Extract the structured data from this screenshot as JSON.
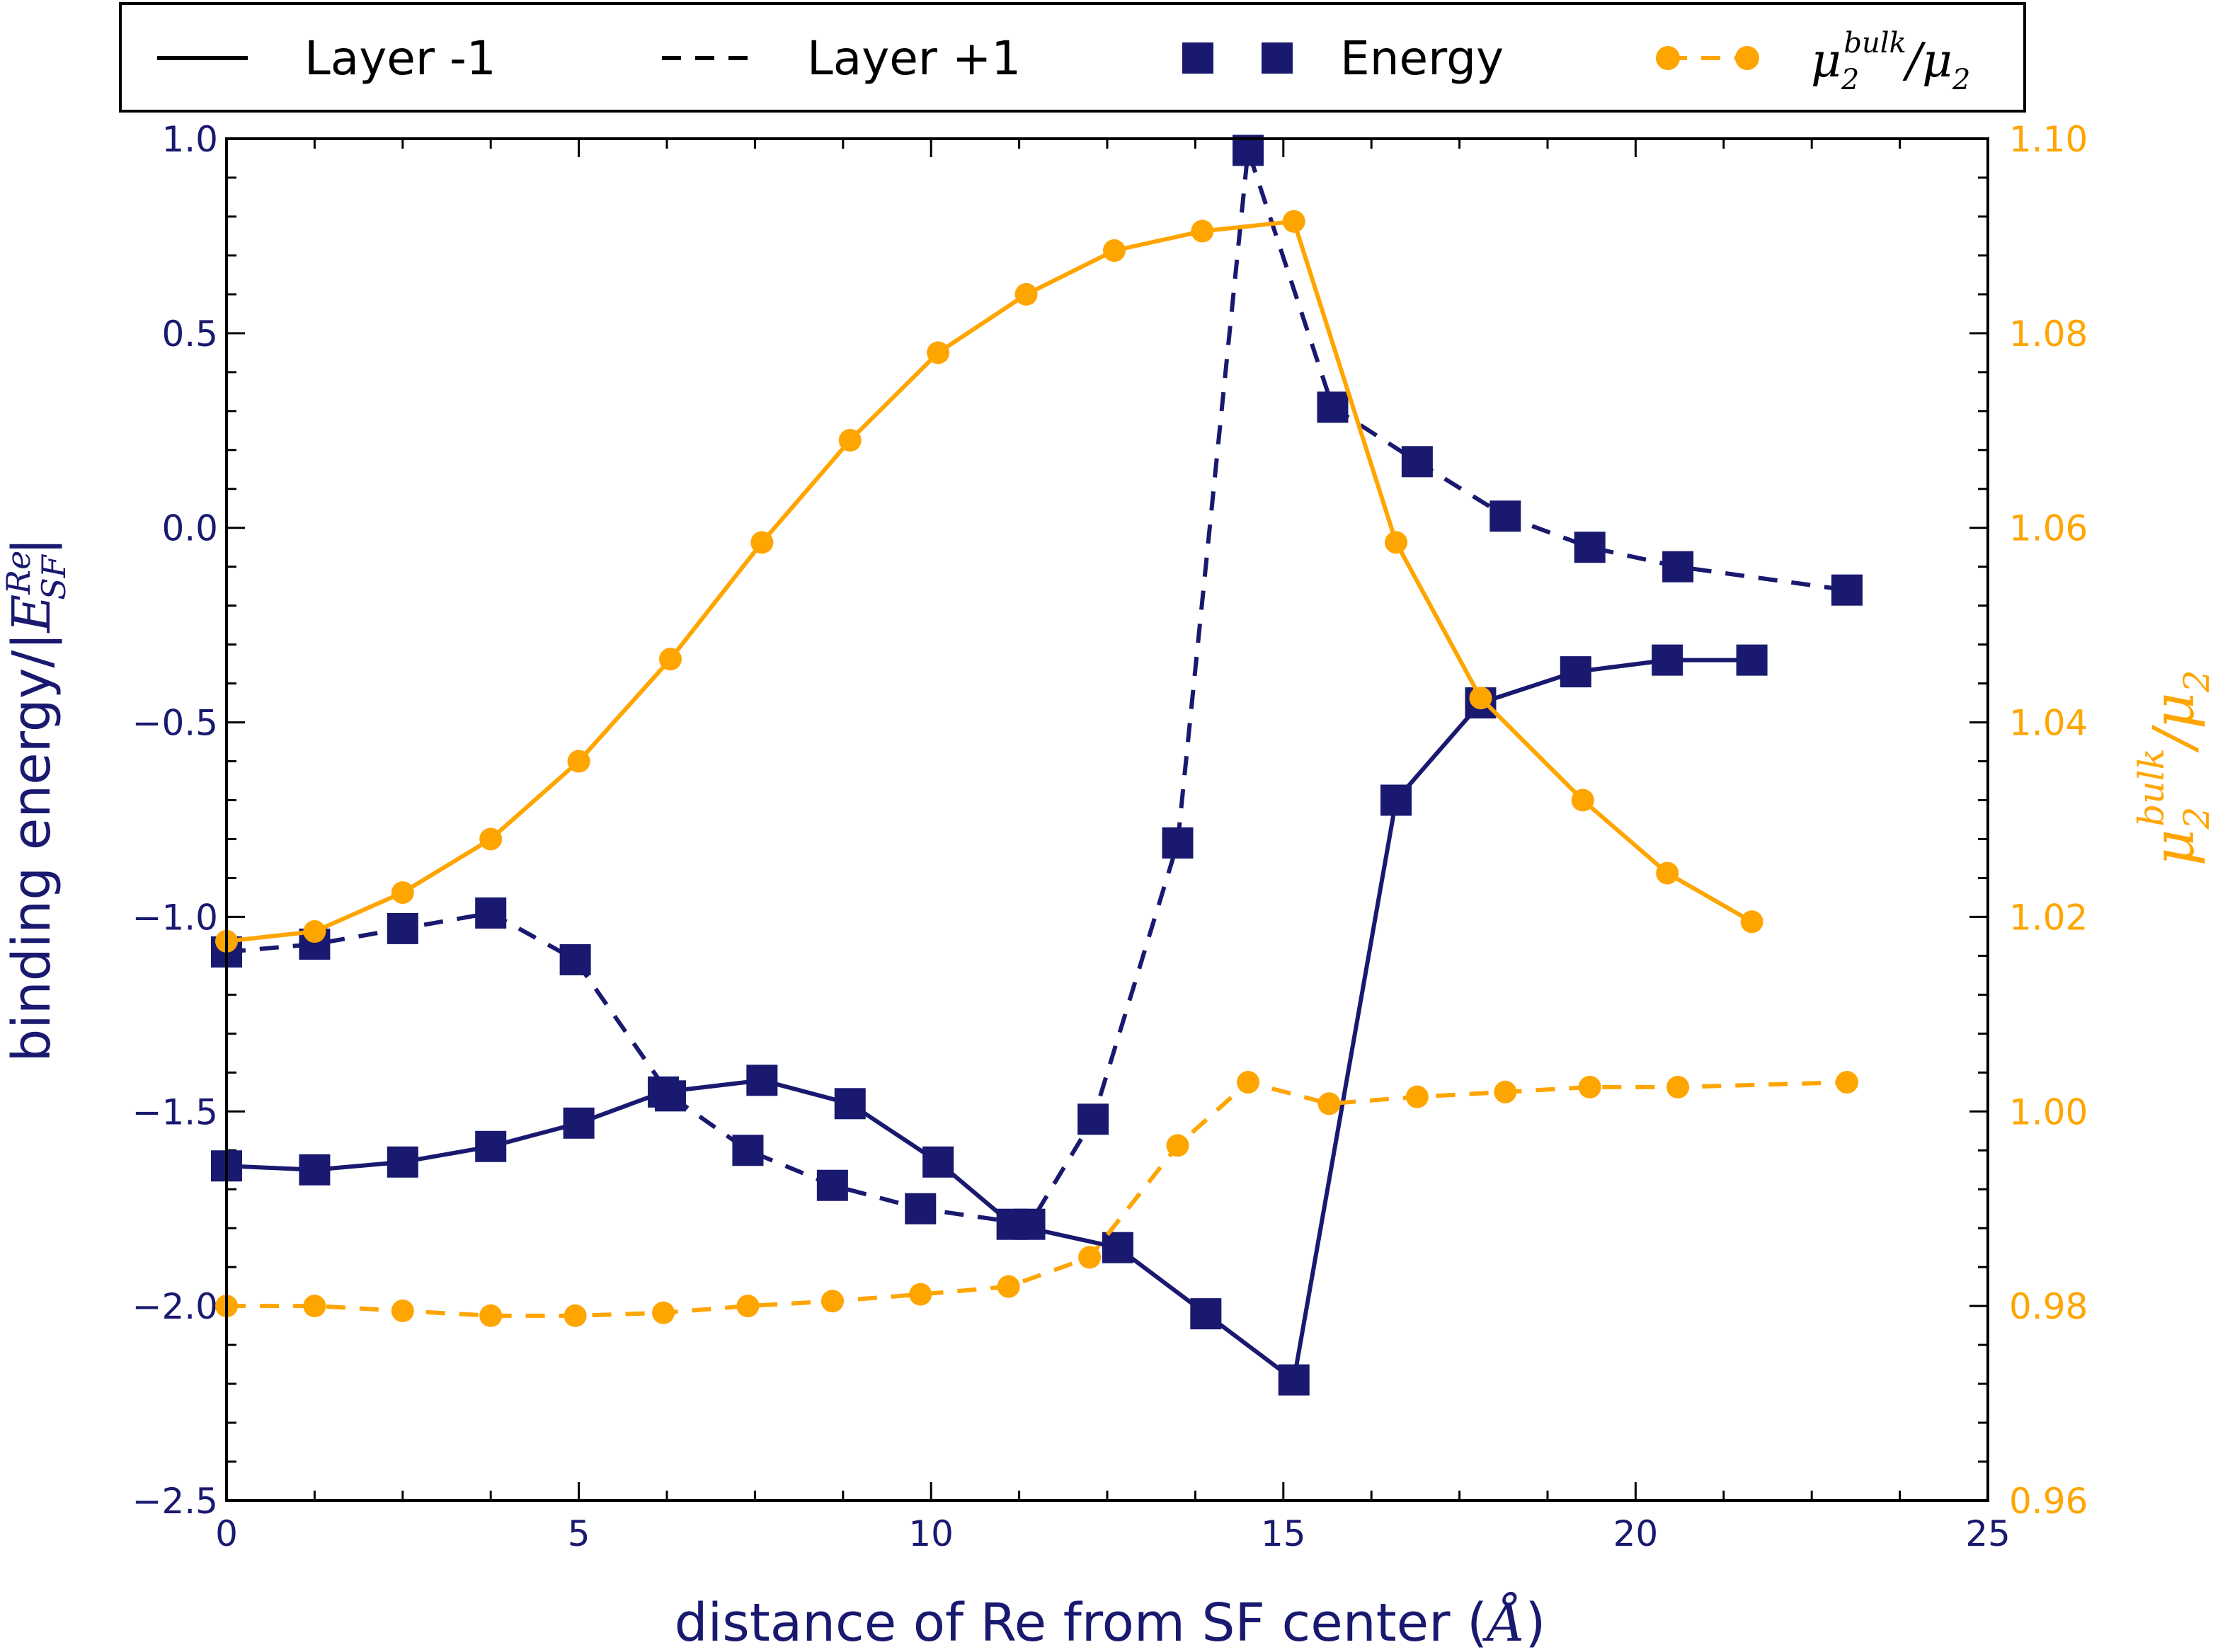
{
  "chart_data": {
    "type": "line",
    "xlabel_text": "distance of Re from SF center (",
    "xlabel_unit": "Å",
    "xlabel_close": ")",
    "ylabel_text": "binding energy/|",
    "ylabel_math_base": "E",
    "ylabel_math_sup": "Re",
    "ylabel_math_sub": "SF",
    "ylabel_close": "|",
    "y2label_mu": "μ",
    "y2label_sub": "2",
    "y2label_sup": "bulk",
    "y2label_slash": "/",
    "xlim": [
      0,
      25
    ],
    "ylim": [
      -2.5,
      1.0
    ],
    "y2lim": [
      0.96,
      1.1
    ],
    "xticks": [
      "0",
      "5",
      "10",
      "15",
      "20",
      "25"
    ],
    "yticks": [
      "1.0",
      "0.5",
      "0.0",
      "−0.5",
      "−1.0",
      "−1.5",
      "−2.0",
      "−2.5"
    ],
    "y2ticks": [
      "1.10",
      "1.08",
      "1.06",
      "1.04",
      "1.02",
      "1.00",
      "0.98",
      "0.96"
    ],
    "legend": {
      "position": "top",
      "layer_minus": "Layer -1",
      "layer_plus": "Layer +1",
      "energy": "Energy",
      "mu_ratio": "μ2^bulk/μ2"
    },
    "colors": {
      "energy": "#191970",
      "mu": "#ffa500"
    },
    "series": [
      {
        "name": "Energy, Layer -1",
        "axis": "left",
        "linestyle": "solid",
        "marker": "square",
        "x": [
          0,
          1.25,
          2.5,
          3.75,
          5.0,
          6.2,
          7.6,
          8.85,
          10.1,
          11.15,
          12.65,
          13.9,
          15.15,
          16.6,
          17.8,
          19.15,
          20.45,
          21.65
        ],
        "y": [
          -1.64,
          -1.65,
          -1.63,
          -1.59,
          -1.53,
          -1.45,
          -1.42,
          -1.48,
          -1.63,
          -1.79,
          -1.85,
          -2.02,
          -2.19,
          -0.7,
          -0.45,
          -0.37,
          -0.34,
          -0.34
        ]
      },
      {
        "name": "Energy, Layer +1",
        "axis": "left",
        "linestyle": "dashed",
        "marker": "square",
        "x": [
          0,
          1.25,
          2.5,
          3.75,
          4.95,
          6.3,
          7.4,
          8.6,
          9.85,
          11.4,
          12.3,
          13.5,
          14.5,
          15.7,
          16.9,
          18.15,
          19.35,
          20.6,
          23.0
        ],
        "y": [
          -1.09,
          -1.07,
          -1.03,
          -0.99,
          -1.11,
          -1.46,
          -1.6,
          -1.69,
          -1.75,
          -1.79,
          -1.52,
          -0.81,
          0.97,
          0.31,
          0.17,
          0.03,
          -0.05,
          -0.1,
          -0.16
        ]
      },
      {
        "name": "μ2^bulk/μ2, Layer -1",
        "axis": "right",
        "linestyle": "solid",
        "marker": "circle",
        "x": [
          0,
          1.25,
          2.5,
          3.75,
          5.0,
          6.3,
          7.6,
          8.85,
          10.1,
          11.35,
          12.6,
          13.85,
          15.15,
          16.6,
          17.8,
          19.25,
          20.45,
          21.65
        ],
        "y": [
          1.0175,
          1.0185,
          1.0225,
          1.028,
          1.036,
          1.0465,
          1.0585,
          1.069,
          1.078,
          1.084,
          1.0885,
          1.0905,
          1.0915,
          1.0585,
          1.0425,
          1.032,
          1.0245,
          1.0195
        ]
      },
      {
        "name": "μ2^bulk/μ2, Layer +1",
        "axis": "right",
        "linestyle": "dashed",
        "marker": "circle",
        "x": [
          0,
          1.25,
          2.5,
          3.75,
          4.95,
          6.2,
          7.4,
          8.6,
          9.85,
          11.1,
          12.25,
          13.5,
          14.5,
          15.65,
          16.9,
          18.15,
          19.35,
          20.6,
          23.0
        ],
        "y": [
          0.98,
          0.98,
          0.9795,
          0.979,
          0.979,
          0.9793,
          0.98,
          0.9805,
          0.9812,
          0.982,
          0.985,
          0.9965,
          1.003,
          1.0008,
          1.0015,
          1.002,
          1.0025,
          1.0025,
          1.003
        ]
      }
    ]
  }
}
